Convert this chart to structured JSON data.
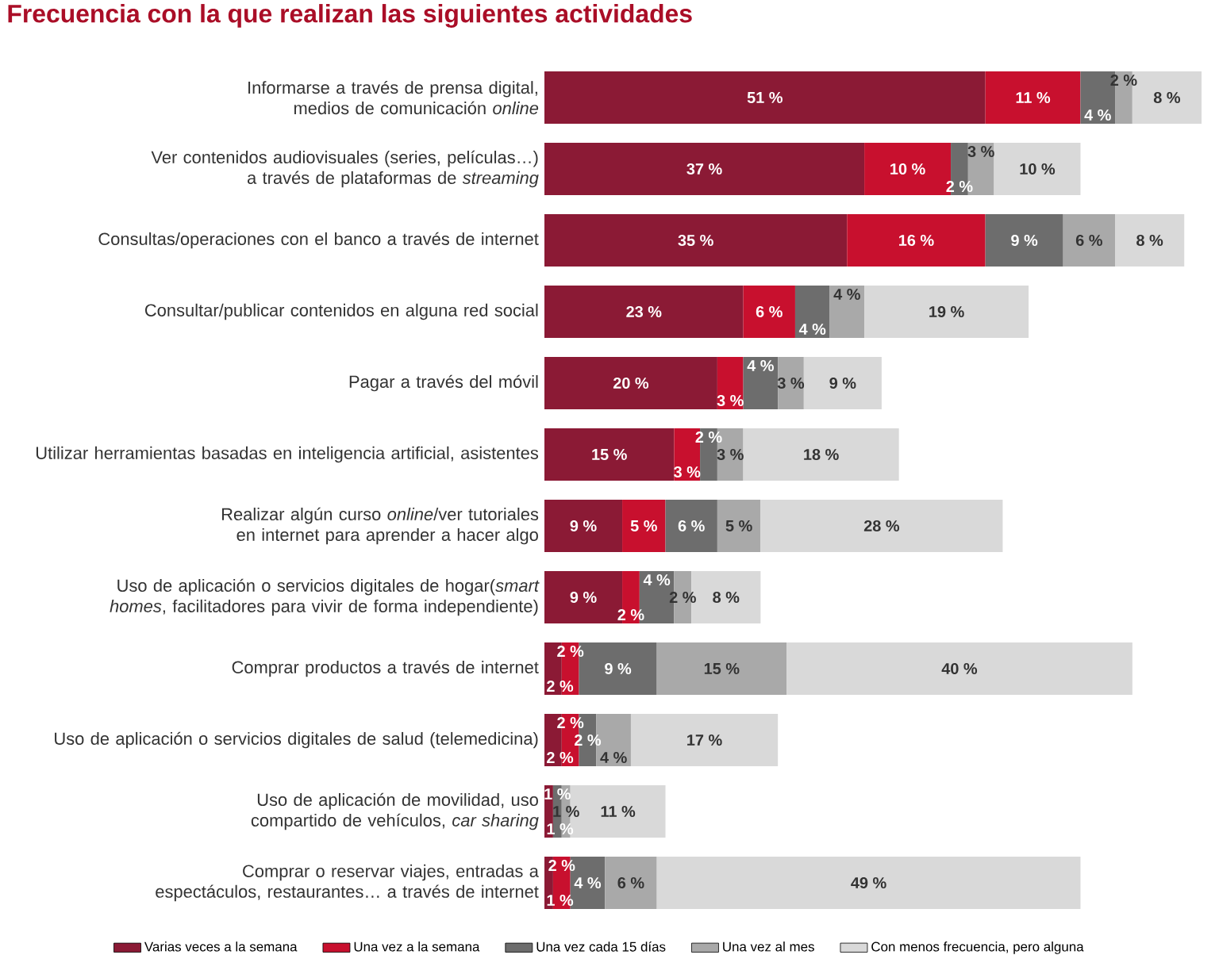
{
  "chart_data": {
    "type": "bar",
    "orientation": "horizontal",
    "stacked": true,
    "legend": "bottom",
    "title": "Frecuencia con la que realizan las siguientes actividades",
    "categories": [
      "Informarse a través de prensa digital, medios de comunicación *online*",
      "Ver contenidos audiovisuales (series, películas…) a través de plataformas de *streaming*",
      "Consultas/operaciones con el banco a través de internet",
      "Consultar/publicar contenidos en alguna red social",
      "Pagar a través del móvil",
      "Utilizar herramientas basadas en inteligencia artificial, asistentes",
      "Realizar algún curso *online*/ver tutoriales en internet para aprender a hacer algo",
      "Uso de aplicación o servicios digitales de hogar(*smart homes*, facilitadores para vivir de forma independiente)",
      "Comprar productos a través de internet",
      "Uso de aplicación o servicios digitales de salud (telemedicina)",
      "Uso de aplicación de movilidad, uso compartido de vehículos, *car sharing*",
      "Comprar o reservar viajes, entradas a espectáculos, restaurantes… a través de internet"
    ],
    "series": [
      {
        "name": "Varias veces a la semana",
        "color": "#8b1a35",
        "values": [
          51,
          37,
          35,
          23,
          20,
          15,
          9,
          9,
          2,
          2,
          1,
          1
        ],
        "value_labels": [
          "51 %",
          "37 %",
          "35 %",
          "23 %",
          "20 %",
          "15 %",
          "9 %",
          "9 %",
          "2 %",
          "2 %",
          "1 %",
          "1 %"
        ]
      },
      {
        "name": "Una vez a la semana",
        "color": "#c8102e",
        "values": [
          11,
          10,
          16,
          6,
          3,
          3,
          5,
          2,
          2,
          2,
          null,
          2
        ],
        "value_labels": [
          "11 %",
          "10 %",
          "16 %",
          "6 %",
          "3 %",
          "3 %",
          "5 %",
          "2 %",
          "2 %",
          "2 %",
          null,
          "2 %"
        ]
      },
      {
        "name": "Una vez cada 15 días",
        "color": "#6d6d6d",
        "values": [
          4,
          2,
          9,
          4,
          4,
          2,
          6,
          4,
          9,
          2,
          1,
          4
        ],
        "value_labels": [
          "4 %",
          "2 %",
          "9 %",
          "4 %",
          "4 %",
          "2 %",
          "6 %",
          "4 %",
          "9 %",
          "2 %",
          "1 %",
          "4 %"
        ]
      },
      {
        "name": "Una vez al mes",
        "color": "#a9a9a9",
        "values": [
          2,
          3,
          6,
          4,
          3,
          3,
          5,
          2,
          15,
          4,
          1,
          6
        ],
        "value_labels": [
          "2 %",
          "3 %",
          "6 %",
          "4 %",
          "3 %",
          "3 %",
          "5 %",
          "2 %",
          "15 %",
          "4 %",
          "1 %",
          "6 %"
        ]
      },
      {
        "name": "Con menos frecuencia, pero alguna",
        "color": "#d9d9d9",
        "values": [
          8,
          10,
          8,
          19,
          9,
          18,
          28,
          8,
          40,
          17,
          11,
          49
        ],
        "value_labels": [
          "8 %",
          "10 %",
          "8 %",
          "19 %",
          "9 %",
          "18 %",
          "28 %",
          "8 %",
          "40 %",
          "17 %",
          "11 %",
          "49 %"
        ]
      }
    ]
  }
}
